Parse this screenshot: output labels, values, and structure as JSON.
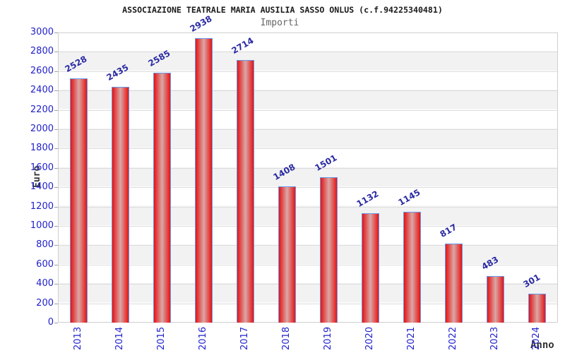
{
  "chart_data": {
    "type": "bar",
    "title": "ASSOCIAZIONE TEATRALE MARIA AUSILIA SASSO ONLUS (c.f.94225340481)",
    "subtitle": "Importi",
    "xlabel": "Anno",
    "ylabel": "Euro",
    "categories": [
      "2013",
      "2014",
      "2015",
      "2016",
      "2017",
      "2018",
      "2019",
      "2020",
      "2021",
      "2022",
      "2023",
      "2024"
    ],
    "values": [
      2528,
      2435,
      2585,
      2938,
      2714,
      1408,
      1501,
      1132,
      1145,
      817,
      483,
      301
    ],
    "ylim": [
      0,
      3000
    ],
    "ytick_step": 200,
    "grid": true,
    "legend": "none",
    "bar_value_labels": true,
    "colors": {
      "axis_label": "#2222cc",
      "value_label": "#2a2aa4",
      "bar_border": "#6699e8",
      "bar_edge": "#e61313",
      "bar_center": "#d9a8a6",
      "band_alt": "#f2f2f2",
      "gridline": "#dcdcdc",
      "plot_border": "#cfcfcf",
      "title": "#1a1a1a",
      "subtitle": "#666666",
      "axis_title": "#333333"
    }
  }
}
